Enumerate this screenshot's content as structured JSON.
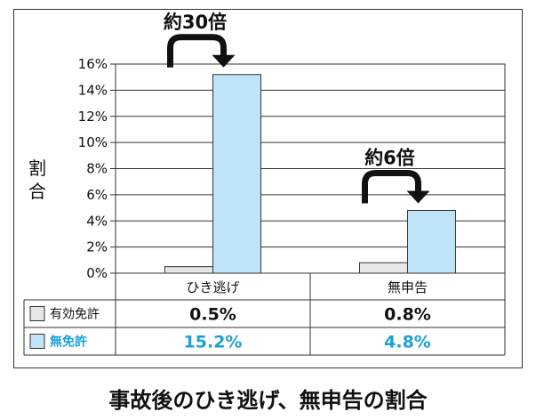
{
  "chart_data": {
    "type": "bar",
    "categories": [
      "ひき逃げ",
      "無申告"
    ],
    "series": [
      {
        "name": "有効免許",
        "values": [
          0.5,
          0.8
        ],
        "labels": [
          "0.5%",
          "0.8%"
        ],
        "color": "#e6e6e6",
        "text_color": "#111111"
      },
      {
        "name": "無免許",
        "values": [
          15.2,
          4.8
        ],
        "labels": [
          "15.2%",
          "4.8%"
        ],
        "color": "#bfe3f7",
        "text_color": "#1ba1d8"
      }
    ],
    "ylabel": "割合",
    "ylim": [
      0,
      16
    ],
    "yticks": [
      0,
      2,
      4,
      6,
      8,
      10,
      12,
      14,
      16
    ],
    "ytick_labels": [
      "0%",
      "2%",
      "4%",
      "6%",
      "8%",
      "10%",
      "12%",
      "14%",
      "16%"
    ],
    "annotations": [
      "約30倍",
      "約6倍"
    ],
    "grid": true,
    "legend": "table-left"
  },
  "caption": "事故後のひき逃げ、無申告の割合"
}
